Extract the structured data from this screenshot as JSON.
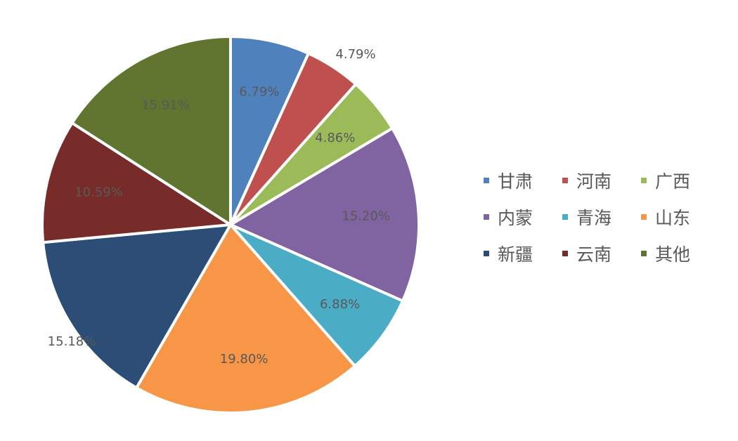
{
  "chart_data": {
    "type": "pie",
    "series": [
      {
        "name": "甘肃",
        "value": 6.79,
        "label": "6.79%",
        "color": "#4F81BD"
      },
      {
        "name": "河南",
        "value": 4.79,
        "label": "4.79%",
        "color": "#C0504D"
      },
      {
        "name": "广西",
        "value": 4.86,
        "label": "4.86%",
        "color": "#9BBB59"
      },
      {
        "name": "内蒙",
        "value": 15.2,
        "label": "15.20%",
        "color": "#8064A2"
      },
      {
        "name": "青海",
        "value": 6.88,
        "label": "6.88%",
        "color": "#4BACC6"
      },
      {
        "name": "山东",
        "value": 19.8,
        "label": "19.80%",
        "color": "#F79646"
      },
      {
        "name": "新疆",
        "value": 15.18,
        "label": "15.18%",
        "color": "#2C4D75"
      },
      {
        "name": "云南",
        "value": 10.59,
        "label": "10.59%",
        "color": "#772C2A"
      },
      {
        "name": "其他",
        "value": 15.91,
        "label": "15.91%",
        "color": "#5F7530"
      }
    ],
    "legend": {
      "placement": "right",
      "columns": 3
    }
  }
}
